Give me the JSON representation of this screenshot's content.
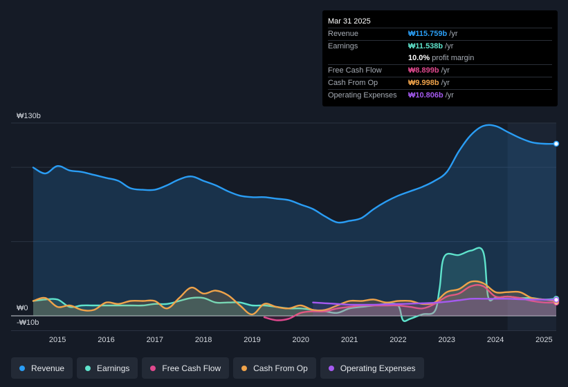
{
  "tooltip": {
    "date": "Mar 31 2025",
    "rows": [
      {
        "label": "Revenue",
        "value": "₩115.759b",
        "unit": "/yr",
        "color": "#2a9df4"
      },
      {
        "label": "Earnings",
        "value": "₩11.538b",
        "unit": "/yr",
        "color": "#5fe3cc"
      },
      {
        "label": "",
        "value": "10.0%",
        "unit": "profit margin",
        "color": "#ffffff"
      },
      {
        "label": "Free Cash Flow",
        "value": "₩8.899b",
        "unit": "/yr",
        "color": "#e0498e"
      },
      {
        "label": "Cash From Op",
        "value": "₩9.998b",
        "unit": "/yr",
        "color": "#f0a34a"
      },
      {
        "label": "Operating Expenses",
        "value": "₩10.806b",
        "unit": "/yr",
        "color": "#a55af0"
      }
    ]
  },
  "legend": [
    {
      "label": "Revenue",
      "color": "#2a9df4"
    },
    {
      "label": "Earnings",
      "color": "#5fe3cc"
    },
    {
      "label": "Free Cash Flow",
      "color": "#e0498e"
    },
    {
      "label": "Cash From Op",
      "color": "#f0a34a"
    },
    {
      "label": "Operating Expenses",
      "color": "#a55af0"
    }
  ],
  "chart_data": {
    "type": "area",
    "title": "",
    "xlabel": "",
    "ylabel": "",
    "y_labels": {
      "top": "₩130b",
      "zero": "₩0",
      "bottom": "-₩10b"
    },
    "ylim": [
      -10,
      130
    ],
    "xlim": [
      2014.5,
      2025.25
    ],
    "x_ticks": [
      2015,
      2016,
      2017,
      2018,
      2019,
      2020,
      2021,
      2022,
      2023,
      2024,
      2025
    ],
    "x_tick_labels": [
      "2015",
      "2016",
      "2017",
      "2018",
      "2019",
      "2020",
      "2021",
      "2022",
      "2023",
      "2024",
      "2025"
    ],
    "highlight_from": 2024.25,
    "series": [
      {
        "name": "Revenue",
        "color": "#2a9df4",
        "x": [
          2014.5,
          2014.75,
          2015.0,
          2015.25,
          2015.5,
          2015.75,
          2016.0,
          2016.25,
          2016.5,
          2016.75,
          2017.0,
          2017.25,
          2017.5,
          2017.75,
          2018.0,
          2018.25,
          2018.5,
          2018.75,
          2019.0,
          2019.25,
          2019.5,
          2019.75,
          2020.0,
          2020.25,
          2020.5,
          2020.75,
          2021.0,
          2021.25,
          2021.5,
          2021.75,
          2022.0,
          2022.25,
          2022.5,
          2022.75,
          2023.0,
          2023.25,
          2023.5,
          2023.75,
          2024.0,
          2024.25,
          2024.5,
          2024.75,
          2025.0,
          2025.25
        ],
        "values": [
          100,
          96,
          101,
          98,
          97,
          95,
          93,
          91,
          86,
          85,
          85,
          88,
          92,
          94,
          91,
          88,
          84,
          81,
          80,
          80,
          79,
          78,
          75,
          72,
          67,
          63,
          64,
          66,
          72,
          77,
          81,
          84,
          87,
          91,
          97,
          111,
          122,
          128,
          128,
          124,
          120,
          117,
          116,
          116
        ]
      },
      {
        "name": "Earnings",
        "color": "#5fe3cc",
        "x": [
          2014.5,
          2014.75,
          2015.0,
          2015.25,
          2015.5,
          2015.75,
          2016.0,
          2016.25,
          2016.5,
          2016.75,
          2017.0,
          2017.25,
          2017.5,
          2017.75,
          2018.0,
          2018.25,
          2018.5,
          2018.75,
          2019.0,
          2019.25,
          2019.5,
          2019.75,
          2020.0,
          2020.25,
          2020.5,
          2020.75,
          2021.0,
          2021.25,
          2021.5,
          2021.75,
          2022.0,
          2022.1,
          2022.25,
          2022.5,
          2022.75,
          2022.85,
          2022.95,
          2023.25,
          2023.5,
          2023.75,
          2023.85,
          2024.0,
          2024.25,
          2024.5,
          2024.75,
          2025.0,
          2025.25
        ],
        "values": [
          10,
          11,
          11,
          6,
          7,
          7,
          7,
          7,
          7,
          7,
          8,
          8,
          10,
          12,
          12,
          9,
          9,
          9,
          7,
          7,
          6,
          5,
          5,
          4,
          3,
          2,
          5,
          6,
          7,
          8,
          7,
          -3,
          -2,
          1,
          3,
          18,
          40,
          41,
          44,
          43,
          13,
          12,
          13,
          12,
          12,
          11,
          11.5
        ]
      },
      {
        "name": "Free Cash Flow",
        "color": "#e0498e",
        "x": [
          2019.25,
          2019.5,
          2019.75,
          2020.0,
          2020.25,
          2020.5,
          2020.75,
          2021.0,
          2021.25,
          2021.5,
          2021.75,
          2022.0,
          2022.25,
          2022.5,
          2022.75,
          2023.0,
          2023.25,
          2023.5,
          2023.75,
          2024.0,
          2024.25,
          2024.5,
          2024.75,
          2025.0,
          2025.25
        ],
        "values": [
          -1,
          -3,
          -2,
          2,
          3,
          3,
          5,
          6,
          7,
          7,
          7,
          7,
          6,
          5,
          8,
          13,
          15,
          20,
          20,
          13,
          13,
          12,
          10,
          9,
          8.9
        ]
      },
      {
        "name": "Cash From Op",
        "color": "#f0a34a",
        "x": [
          2014.5,
          2014.75,
          2015.0,
          2015.25,
          2015.5,
          2015.75,
          2016.0,
          2016.25,
          2016.5,
          2016.75,
          2017.0,
          2017.25,
          2017.5,
          2017.75,
          2018.0,
          2018.25,
          2018.5,
          2018.75,
          2019.0,
          2019.25,
          2019.5,
          2019.75,
          2020.0,
          2020.25,
          2020.5,
          2020.75,
          2021.0,
          2021.25,
          2021.5,
          2021.75,
          2022.0,
          2022.25,
          2022.5,
          2022.75,
          2023.0,
          2023.25,
          2023.5,
          2023.75,
          2024.0,
          2024.25,
          2024.5,
          2024.75,
          2025.0,
          2025.25
        ],
        "values": [
          10,
          12,
          6,
          7,
          4,
          4,
          9,
          8,
          10,
          10,
          10,
          5,
          12,
          19,
          15,
          17,
          14,
          7,
          1,
          8,
          6,
          5,
          7,
          4,
          4,
          7,
          10,
          10,
          11,
          9,
          10,
          10,
          8,
          9,
          16,
          18,
          23,
          22,
          16,
          16,
          16,
          12,
          11,
          10
        ]
      },
      {
        "name": "Operating Expenses",
        "color": "#a55af0",
        "x": [
          2020.25,
          2020.5,
          2020.75,
          2021.0,
          2021.25,
          2021.5,
          2021.75,
          2022.0,
          2022.25,
          2022.5,
          2022.75,
          2023.0,
          2023.25,
          2023.5,
          2023.75,
          2024.0,
          2024.25,
          2024.5,
          2024.75,
          2025.0,
          2025.25
        ],
        "values": [
          9,
          8.5,
          8,
          7.5,
          7.5,
          7.5,
          7.8,
          8,
          8.2,
          8.5,
          8.8,
          9.5,
          10.5,
          11.5,
          11.5,
          11.5,
          11.5,
          11.2,
          11,
          10.9,
          10.8
        ]
      }
    ]
  }
}
